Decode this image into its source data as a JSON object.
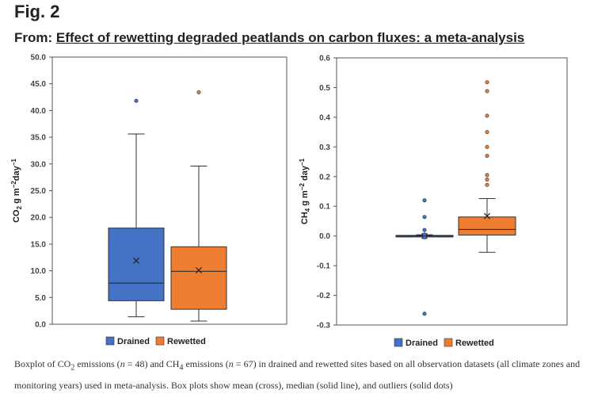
{
  "header": {
    "fig_label": "Fig. 2",
    "from_prefix": "From: ",
    "article_title": "Effect of rewetting degraded peatlands on carbon fluxes: a meta-analysis"
  },
  "caption": {
    "t1": "Boxplot of CO",
    "sub1": "2",
    "t2": " emissions (",
    "n1": "n",
    "t3": " = 48) and CH",
    "sub2": "4",
    "t4": " emissions (",
    "n2": "n",
    "t5": " = 67) in drained and rewetted sites based on all observation datasets (all climate zones and monitoring years) used in meta-analysis. Box plots show mean (cross), median (solid line), and outliers (solid dots)"
  },
  "colors": {
    "drained": "#4472c4",
    "rewetted": "#ed7d31",
    "axis": "#555555"
  },
  "chart_data": [
    {
      "type": "box",
      "title": "",
      "ylabel_main": "CO",
      "ylabel_sub": "2",
      "ylabel_rest": " g m",
      "ylabel_sup1": "−2",
      "ylabel_mid": "day",
      "ylabel_sup2": "−1",
      "ylim": [
        0,
        50
      ],
      "yticks": [
        "0.0",
        "5.0",
        "10.0",
        "15.0",
        "20.0",
        "25.0",
        "30.0",
        "35.0",
        "40.0",
        "45.0",
        "50.0"
      ],
      "ytick_values": [
        0,
        5,
        10,
        15,
        20,
        25,
        30,
        35,
        40,
        45,
        50
      ],
      "legend": [
        "Drained",
        "Rewetted"
      ],
      "series": [
        {
          "name": "Drained",
          "whisker_low": 1.4,
          "q1": 4.4,
          "median": 7.7,
          "q3": 18.0,
          "whisker_high": 35.6,
          "mean": 11.9,
          "outliers": [
            41.8
          ]
        },
        {
          "name": "Rewetted",
          "whisker_low": 0.6,
          "q1": 2.8,
          "median": 9.9,
          "q3": 14.5,
          "whisker_high": 29.6,
          "mean": 10.1,
          "outliers": [
            43.4
          ]
        }
      ]
    },
    {
      "type": "box",
      "title": "",
      "ylabel_main": "CH",
      "ylabel_sub": "4",
      "ylabel_rest": " g m",
      "ylabel_sup1": "−2",
      "ylabel_mid": " day",
      "ylabel_sup2": "−1",
      "ylim": [
        -0.3,
        0.6
      ],
      "yticks": [
        "-0.3",
        "-0.2",
        "-0.1",
        "0.0",
        "0.1",
        "0.2",
        "0.3",
        "0.4",
        "0.5",
        "0.6"
      ],
      "ytick_values": [
        -0.3,
        -0.2,
        -0.1,
        0.0,
        0.1,
        0.2,
        0.3,
        0.4,
        0.5,
        0.6
      ],
      "legend": [
        "Drained",
        "Rewetted"
      ],
      "series": [
        {
          "name": "Drained",
          "whisker_low": -0.002,
          "q1": -0.002,
          "median": 0.0,
          "q3": 0.002,
          "whisker_high": 0.004,
          "mean": 0.0,
          "outliers": [
            0.12,
            0.064,
            0.02,
            0.005,
            -0.005,
            -0.262
          ]
        },
        {
          "name": "Rewetted",
          "whisker_low": -0.055,
          "q1": 0.003,
          "median": 0.022,
          "q3": 0.064,
          "whisker_high": 0.126,
          "mean": 0.067,
          "outliers": [
            0.518,
            0.488,
            0.405,
            0.35,
            0.3,
            0.27,
            0.205,
            0.19,
            0.172
          ]
        }
      ]
    }
  ]
}
